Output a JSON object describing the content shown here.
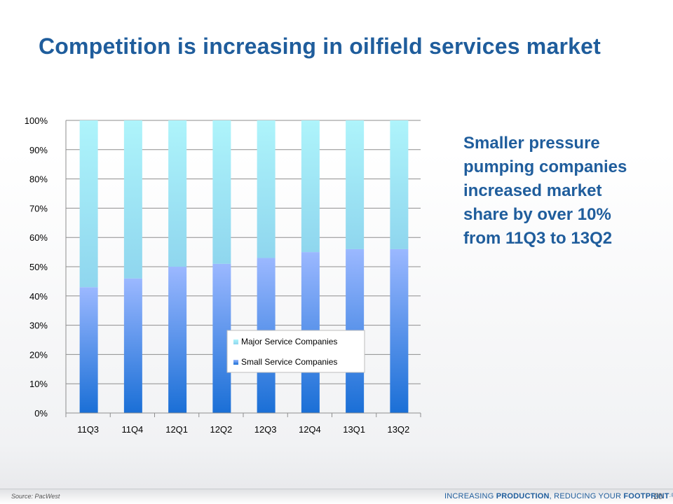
{
  "title": "Competition is increasing in oilfield services market",
  "callout": "Smaller pressure pumping companies increased market share by over 10% from 11Q3 to 13Q2",
  "footer": {
    "source": "Source: PacWest",
    "tagline_prefix": "INCREASING ",
    "tagline_bold1": "PRODUCTION",
    "tagline_mid": ", REDUCING YOUR ",
    "tagline_bold2": "FOOTPRINT",
    "tagline_mark": ".®",
    "page_number": "20"
  },
  "colors": {
    "title": "#1f5d9c",
    "small_bottom": "#1a6fd6",
    "small_top": "#9bb8ff",
    "major_bottom": "#8fd6ee",
    "major_top": "#aef4fb"
  },
  "chart_data": {
    "type": "bar",
    "stacked": true,
    "percent": true,
    "categories": [
      "11Q3",
      "11Q4",
      "12Q1",
      "12Q2",
      "12Q3",
      "12Q4",
      "13Q1",
      "13Q2"
    ],
    "series": [
      {
        "name": "Small Service Companies",
        "values": [
          43,
          46,
          50,
          51,
          53,
          55,
          56,
          56
        ]
      },
      {
        "name": "Major Service Companies",
        "values": [
          57,
          54,
          50,
          49,
          47,
          45,
          44,
          44
        ]
      }
    ],
    "ylim": [
      0,
      100
    ],
    "yticks": [
      "0%",
      "10%",
      "20%",
      "30%",
      "40%",
      "50%",
      "60%",
      "70%",
      "80%",
      "90%",
      "100%"
    ],
    "grid": true,
    "legend": {
      "placement": "inside-right",
      "order": [
        "Major Service Companies",
        "Small Service Companies"
      ]
    }
  }
}
